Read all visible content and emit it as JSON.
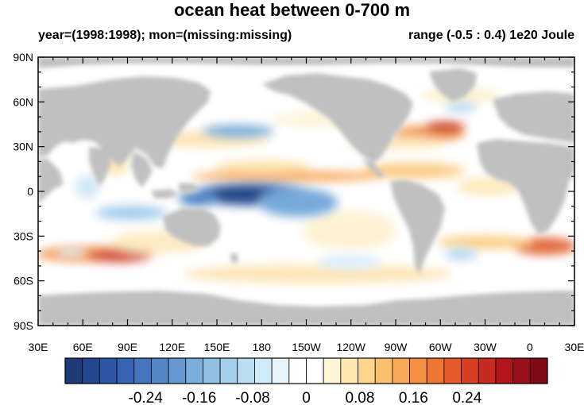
{
  "header": {
    "title": "ocean heat between 0-700 m",
    "subtitle_left": "year=(1998:1998); mon=(missing:missing)",
    "subtitle_right": "range (-0.5 : 0.4) 1e20 Joule"
  },
  "map": {
    "lon_labels": [
      "30E",
      "60E",
      "90E",
      "120E",
      "150E",
      "180",
      "150W",
      "120W",
      "90W",
      "60W",
      "30W",
      "0",
      "30E"
    ],
    "lat_labels": [
      "90N",
      "60N",
      "30N",
      "0",
      "30S",
      "60S",
      "90S"
    ],
    "land_color": "#c0c0c0",
    "background_color": "#ffffff"
  },
  "colorbar": {
    "labels": [
      "-0.24",
      "-0.16",
      "-0.08",
      "0",
      "0.08",
      "0.16",
      "0.24"
    ],
    "label_values": [
      -0.24,
      -0.16,
      -0.08,
      0,
      0.08,
      0.16,
      0.24
    ],
    "min": -0.36,
    "max": 0.36,
    "colors": [
      "#1d3b78",
      "#24468e",
      "#2c55a4",
      "#3664b3",
      "#4475be",
      "#5387c8",
      "#6699d2",
      "#7aaedb",
      "#8fc0e4",
      "#a4d0ec",
      "#bbdef2",
      "#d1eaf7",
      "#e6f4fb",
      "#ffffff",
      "#ffffff",
      "#fff6d6",
      "#fee8b0",
      "#fdd68c",
      "#fbc06d",
      "#f9a855",
      "#f58f43",
      "#ef7535",
      "#e55b2c",
      "#d83f24",
      "#c72a20",
      "#b2181b",
      "#99101a",
      "#800a16"
    ]
  }
}
